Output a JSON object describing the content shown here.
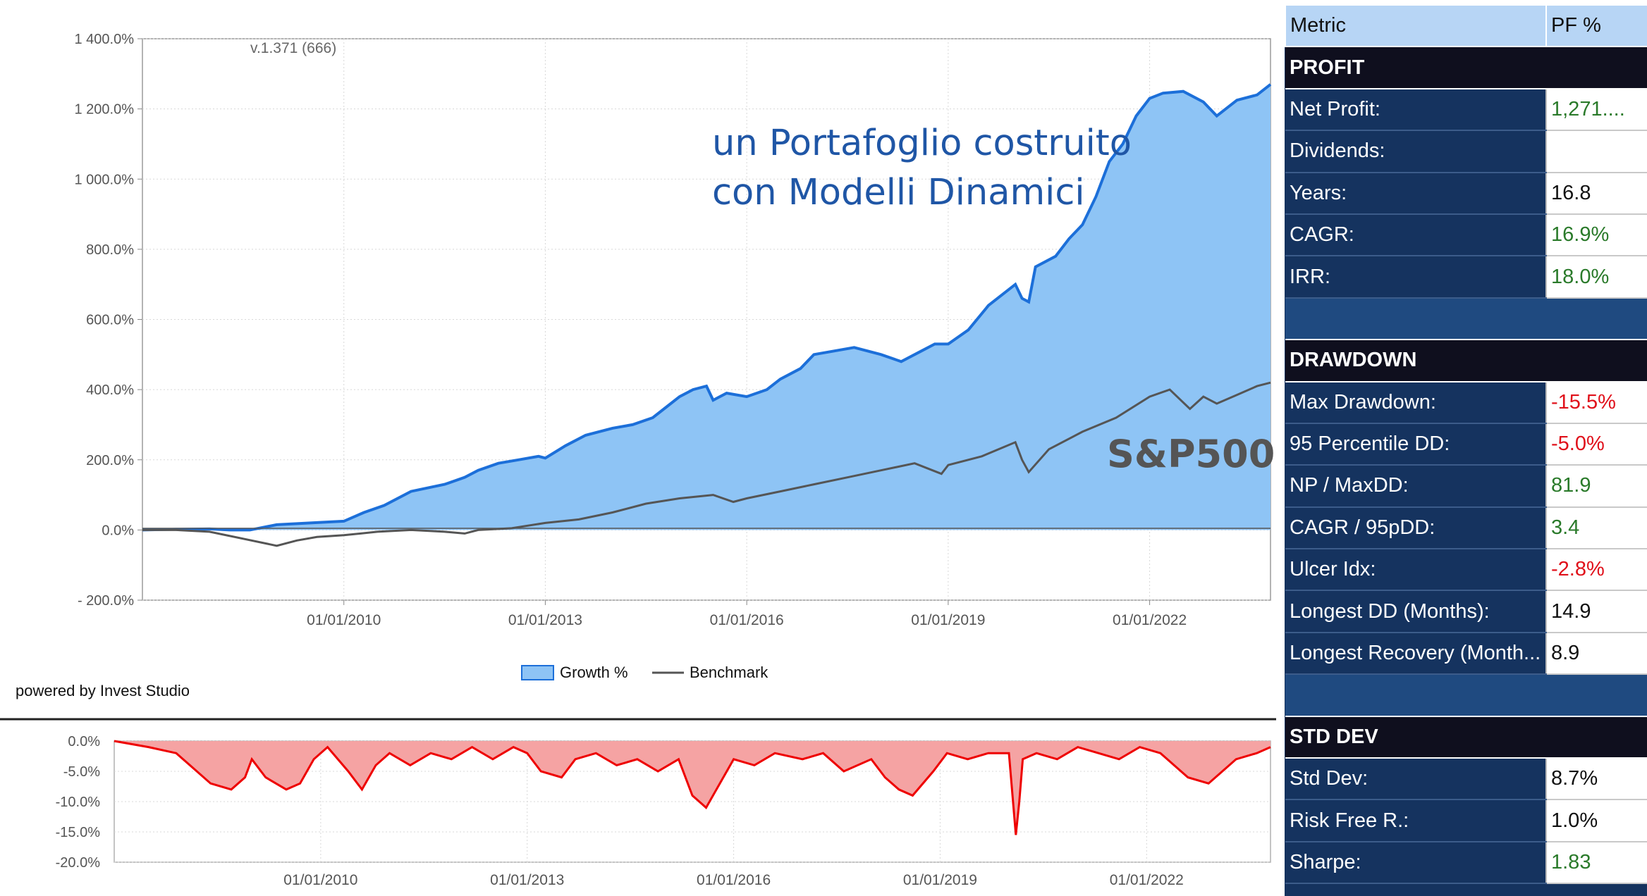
{
  "version_label": "v.1.371 (666)",
  "annotation": {
    "line1": "un Portafoglio costruito",
    "line2": "con Modelli Dinamici",
    "benchmark_label": "S&P500"
  },
  "powered_by": "powered by Invest Studio",
  "colors": {
    "growth_fill": "#8ec4f5",
    "growth_line": "#1c6fd9",
    "benchmark_line": "#555555",
    "drawdown": "#ee0000",
    "drawdown_fill": "#f5a3a3"
  },
  "chart_data": [
    {
      "type": "area",
      "title": "",
      "xlabel": "",
      "ylabel": "",
      "x_range": [
        2007.0,
        2023.8
      ],
      "ylim": [
        -200,
        1400
      ],
      "y_ticks": [
        "1 400.0%",
        "1 200.0%",
        "1 000.0%",
        "800.0%",
        "600.0%",
        "400.0%",
        "200.0%",
        "0.0%",
        "- 200.0%"
      ],
      "y_tick_values": [
        1400,
        1200,
        1000,
        800,
        600,
        400,
        200,
        0,
        -200
      ],
      "x_ticks": [
        "01/01/2010",
        "01/01/2013",
        "01/01/2016",
        "01/01/2019",
        "01/01/2022"
      ],
      "x_tick_values": [
        2010,
        2013,
        2016,
        2019,
        2022
      ],
      "legend": {
        "position": "bottom",
        "items": [
          "Growth %",
          "Benchmark"
        ]
      },
      "grid": true,
      "series": [
        {
          "name": "Growth %",
          "x": [
            2007.0,
            2007.5,
            2008.0,
            2008.3,
            2008.6,
            2009.0,
            2009.5,
            2010.0,
            2010.3,
            2010.6,
            2011.0,
            2011.5,
            2011.8,
            2012.0,
            2012.3,
            2012.6,
            2012.9,
            2013.0,
            2013.3,
            2013.6,
            2014.0,
            2014.3,
            2014.6,
            2014.8,
            2015.0,
            2015.2,
            2015.4,
            2015.5,
            2015.7,
            2016.0,
            2016.3,
            2016.5,
            2016.8,
            2017.0,
            2017.3,
            2017.6,
            2018.0,
            2018.3,
            2018.6,
            2018.8,
            2019.0,
            2019.3,
            2019.6,
            2020.0,
            2020.1,
            2020.2,
            2020.3,
            2020.6,
            2020.8,
            2021.0,
            2021.2,
            2021.4,
            2021.6,
            2021.8,
            2022.0,
            2022.2,
            2022.5,
            2022.8,
            2023.0,
            2023.3,
            2023.6,
            2023.8
          ],
          "y": [
            0,
            2,
            3,
            0,
            0,
            15,
            20,
            25,
            50,
            70,
            110,
            130,
            150,
            170,
            190,
            200,
            210,
            205,
            240,
            270,
            290,
            300,
            320,
            350,
            380,
            400,
            410,
            370,
            390,
            380,
            400,
            430,
            460,
            500,
            510,
            520,
            500,
            480,
            510,
            530,
            530,
            570,
            640,
            700,
            660,
            650,
            750,
            780,
            830,
            870,
            950,
            1050,
            1100,
            1180,
            1230,
            1245,
            1250,
            1220,
            1180,
            1225,
            1240,
            1270
          ]
        },
        {
          "name": "Benchmark",
          "x": [
            2007.0,
            2007.5,
            2008.0,
            2008.5,
            2009.0,
            2009.3,
            2009.6,
            2010.0,
            2010.5,
            2011.0,
            2011.5,
            2011.8,
            2012.0,
            2012.5,
            2013.0,
            2013.5,
            2014.0,
            2014.5,
            2015.0,
            2015.5,
            2015.8,
            2016.0,
            2016.5,
            2017.0,
            2017.5,
            2018.0,
            2018.5,
            2018.9,
            2019.0,
            2019.5,
            2020.0,
            2020.1,
            2020.2,
            2020.5,
            2021.0,
            2021.5,
            2022.0,
            2022.3,
            2022.6,
            2022.8,
            2023.0,
            2023.3,
            2023.6,
            2023.8
          ],
          "y": [
            0,
            0,
            -5,
            -25,
            -45,
            -30,
            -20,
            -15,
            -5,
            0,
            -5,
            -10,
            0,
            5,
            20,
            30,
            50,
            75,
            90,
            100,
            80,
            90,
            110,
            130,
            150,
            170,
            190,
            160,
            185,
            210,
            250,
            200,
            165,
            230,
            280,
            320,
            380,
            400,
            345,
            380,
            360,
            385,
            410,
            420
          ]
        },
        {
          "name": "Drawdown",
          "ylim": [
            -20,
            0
          ],
          "y_ticks": [
            "0.0%",
            "-5.0%",
            "-10.0%",
            "-15.0%",
            "-20.0%"
          ],
          "y_tick_values": [
            0,
            -5,
            -10,
            -15,
            -20
          ],
          "x": [
            2007.0,
            2007.5,
            2007.9,
            2008.1,
            2008.4,
            2008.7,
            2008.9,
            2009.0,
            2009.2,
            2009.5,
            2009.7,
            2009.9,
            2010.1,
            2010.4,
            2010.6,
            2010.8,
            2011.0,
            2011.3,
            2011.6,
            2011.9,
            2012.2,
            2012.5,
            2012.8,
            2013.0,
            2013.2,
            2013.5,
            2013.7,
            2014.0,
            2014.3,
            2014.6,
            2014.9,
            2015.2,
            2015.4,
            2015.5,
            2015.6,
            2015.8,
            2016.0,
            2016.3,
            2016.6,
            2017.0,
            2017.3,
            2017.6,
            2018.0,
            2018.2,
            2018.4,
            2018.6,
            2018.9,
            2019.1,
            2019.4,
            2019.7,
            2020.0,
            2020.1,
            2020.15,
            2020.2,
            2020.4,
            2020.7,
            2021.0,
            2021.3,
            2021.6,
            2021.9,
            2022.2,
            2022.4,
            2022.6,
            2022.9,
            2023.1,
            2023.3,
            2023.6,
            2023.8
          ],
          "y": [
            0,
            -1,
            -2,
            -4,
            -7,
            -8,
            -6,
            -3,
            -6,
            -8,
            -7,
            -3,
            -1,
            -5,
            -8,
            -4,
            -2,
            -4,
            -2,
            -3,
            -1,
            -3,
            -1,
            -2,
            -5,
            -6,
            -3,
            -2,
            -4,
            -3,
            -5,
            -3,
            -9,
            -10,
            -11,
            -7,
            -3,
            -4,
            -2,
            -3,
            -2,
            -5,
            -3,
            -6,
            -8,
            -9,
            -5,
            -2,
            -3,
            -2,
            -2,
            -15.5,
            -10,
            -3,
            -2,
            -3,
            -1,
            -2,
            -3,
            -1,
            -2,
            -4,
            -6,
            -7,
            -5,
            -3,
            -2,
            -1
          ]
        }
      ]
    }
  ],
  "metrics_table": {
    "header": {
      "metric": "Metric",
      "value": "PF %"
    },
    "sections": [
      {
        "title": "PROFIT",
        "rows": [
          {
            "label": "Net Profit:",
            "value": "1,271....",
            "tone": "good"
          },
          {
            "label": "Dividends:",
            "value": "",
            "tone": ""
          },
          {
            "label": "Years:",
            "value": "16.8",
            "tone": ""
          },
          {
            "label": "CAGR:",
            "value": "16.9%",
            "tone": "good"
          },
          {
            "label": "IRR:",
            "value": "18.0%",
            "tone": "good"
          }
        ]
      },
      {
        "title": "DRAWDOWN",
        "rows": [
          {
            "label": "Max Drawdown:",
            "value": "-15.5%",
            "tone": "bad"
          },
          {
            "label": "95 Percentile DD:",
            "value": "-5.0%",
            "tone": "bad"
          },
          {
            "label": "NP / MaxDD:",
            "value": "81.9",
            "tone": "good"
          },
          {
            "label": "CAGR / 95pDD:",
            "value": "3.4",
            "tone": "good"
          },
          {
            "label": "Ulcer Idx:",
            "value": "-2.8%",
            "tone": "bad"
          },
          {
            "label": "Longest DD (Months):",
            "value": "14.9",
            "tone": ""
          },
          {
            "label": "Longest Recovery (Month...",
            "value": "8.9",
            "tone": ""
          }
        ]
      },
      {
        "title": "STD DEV",
        "rows": [
          {
            "label": "Std Dev:",
            "value": "8.7%",
            "tone": ""
          },
          {
            "label": "Risk Free R.:",
            "value": "1.0%",
            "tone": ""
          },
          {
            "label": "Sharpe:",
            "value": "1.83",
            "tone": "good"
          }
        ]
      }
    ]
  }
}
